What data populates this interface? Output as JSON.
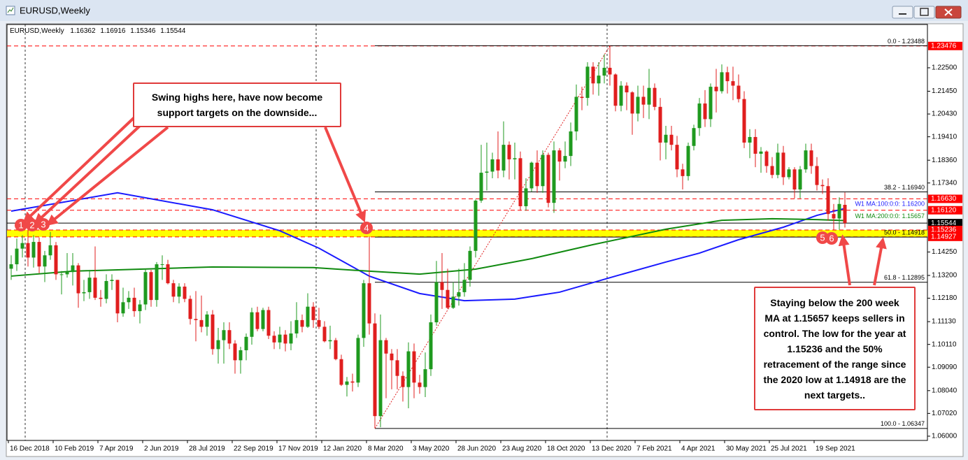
{
  "chart_data": {
    "type": "candlestick",
    "title": "EURUSD,Weekly",
    "up_color": "#1f9a1f",
    "down_color": "#e01e1e",
    "ylim": [
      1.0581,
      1.2444
    ],
    "yticks": [
      {
        "value": 1.225,
        "label": "1.22500"
      },
      {
        "value": 1.2145,
        "label": "1.21450"
      },
      {
        "value": 1.2043,
        "label": "1.20430"
      },
      {
        "value": 1.1941,
        "label": "1.19410"
      },
      {
        "value": 1.1836,
        "label": "1.18360"
      },
      {
        "value": 1.1734,
        "label": "1.17340"
      },
      {
        "value": 1.1425,
        "label": "1.14250"
      },
      {
        "value": 1.132,
        "label": "1.13200"
      },
      {
        "value": 1.1218,
        "label": "1.12180"
      },
      {
        "value": 1.1113,
        "label": "1.11130"
      },
      {
        "value": 1.1011,
        "label": "1.10110"
      },
      {
        "value": 1.0909,
        "label": "1.09090"
      },
      {
        "value": 1.0804,
        "label": "1.08040"
      },
      {
        "value": 1.0702,
        "label": "1.07020"
      },
      {
        "value": 1.06,
        "label": "1.06000"
      }
    ],
    "xticks": [
      {
        "value": 0,
        "label": "16 Dec 2018"
      },
      {
        "value": 8,
        "label": "10 Feb 2019"
      },
      {
        "value": 16,
        "label": "7 Apr 2019"
      },
      {
        "value": 24,
        "label": "2 Jun 2019"
      },
      {
        "value": 32,
        "label": "28 Jul 2019"
      },
      {
        "value": 40,
        "label": "22 Sep 2019"
      },
      {
        "value": 48,
        "label": "17 Nov 2019"
      },
      {
        "value": 56,
        "label": "12 Jan 2020"
      },
      {
        "value": 64,
        "label": "8 Mar 2020"
      },
      {
        "value": 72,
        "label": "3 May 2020"
      },
      {
        "value": 80,
        "label": "28 Jun 2020"
      },
      {
        "value": 88,
        "label": "23 Aug 2020"
      },
      {
        "value": 96,
        "label": "18 Oct 2020"
      },
      {
        "value": 104,
        "label": "13 Dec 2020"
      },
      {
        "value": 112,
        "label": "7 Feb 2021"
      },
      {
        "value": 120,
        "label": "4 Apr 2021"
      },
      {
        "value": 128,
        "label": "30 May 2021"
      },
      {
        "value": 136,
        "label": "25 Jul 2021"
      },
      {
        "value": 144,
        "label": "19 Sep 2021"
      }
    ],
    "ohlc": [
      [
        1.135,
        1.141,
        1.13,
        1.137
      ],
      [
        1.137,
        1.1485,
        1.134,
        1.144
      ],
      [
        1.144,
        1.15,
        1.14,
        1.1465
      ],
      [
        1.1465,
        1.157,
        1.136,
        1.14
      ],
      [
        1.14,
        1.15,
        1.1355,
        1.147
      ],
      [
        1.147,
        1.149,
        1.133,
        1.136
      ],
      [
        1.136,
        1.143,
        1.129,
        1.141
      ],
      [
        1.141,
        1.1515,
        1.139,
        1.1455
      ],
      [
        1.1455,
        1.147,
        1.13,
        1.1325
      ],
      [
        1.1325,
        1.134,
        1.1235,
        1.1325
      ],
      [
        1.1325,
        1.142,
        1.131,
        1.1335
      ],
      [
        1.1335,
        1.142,
        1.1275,
        1.1365
      ],
      [
        1.1365,
        1.1375,
        1.1175,
        1.124
      ],
      [
        1.124,
        1.13,
        1.1205,
        1.1245
      ],
      [
        1.1245,
        1.1345,
        1.1215,
        1.131
      ],
      [
        1.131,
        1.145,
        1.121,
        1.122
      ],
      [
        1.122,
        1.1255,
        1.118,
        1.1215
      ],
      [
        1.1215,
        1.1325,
        1.1195,
        1.1295
      ],
      [
        1.1295,
        1.1325,
        1.1255,
        1.13
      ],
      [
        1.13,
        1.13,
        1.111,
        1.115
      ],
      [
        1.115,
        1.1265,
        1.1135,
        1.12
      ],
      [
        1.12,
        1.125,
        1.117,
        1.122
      ],
      [
        1.122,
        1.1265,
        1.1135,
        1.116
      ],
      [
        1.116,
        1.121,
        1.1105,
        1.119
      ],
      [
        1.119,
        1.135,
        1.1165,
        1.1335
      ],
      [
        1.1335,
        1.1345,
        1.118,
        1.121
      ],
      [
        1.121,
        1.138,
        1.118,
        1.137
      ],
      [
        1.137,
        1.141,
        1.13,
        1.137
      ],
      [
        1.137,
        1.139,
        1.128,
        1.1285
      ],
      [
        1.1285,
        1.13,
        1.12,
        1.1225
      ],
      [
        1.1225,
        1.1285,
        1.1195,
        1.127
      ],
      [
        1.127,
        1.1285,
        1.12,
        1.1215
      ],
      [
        1.1215,
        1.123,
        1.11,
        1.1125
      ],
      [
        1.1125,
        1.125,
        1.1025,
        1.112
      ],
      [
        1.112,
        1.123,
        1.1065,
        1.109
      ],
      [
        1.109,
        1.116,
        1.105,
        1.1145
      ],
      [
        1.1145,
        1.1165,
        1.0965,
        1.099
      ],
      [
        1.099,
        1.1085,
        1.0925,
        1.103
      ],
      [
        1.103,
        1.111,
        1.0925,
        1.1075
      ],
      [
        1.1075,
        1.111,
        1.099,
        1.1015
      ],
      [
        1.1015,
        1.103,
        1.088,
        1.094
      ],
      [
        1.094,
        1.1,
        1.088,
        1.0985
      ],
      [
        1.0985,
        1.106,
        1.094,
        1.1045
      ],
      [
        1.1045,
        1.1175,
        1.101,
        1.1155
      ],
      [
        1.1155,
        1.118,
        1.107,
        1.108
      ],
      [
        1.108,
        1.1175,
        1.107,
        1.1165
      ],
      [
        1.1165,
        1.118,
        1.1035,
        1.105
      ],
      [
        1.105,
        1.107,
        1.099,
        1.102
      ],
      [
        1.102,
        1.109,
        1.099,
        1.1055
      ],
      [
        1.1055,
        1.1075,
        1.098,
        1.1015
      ],
      [
        1.1015,
        1.1115,
        1.0985,
        1.106
      ],
      [
        1.106,
        1.12,
        1.104,
        1.112
      ],
      [
        1.112,
        1.1145,
        1.1065,
        1.109
      ],
      [
        1.109,
        1.124,
        1.1085,
        1.118
      ],
      [
        1.118,
        1.12,
        1.1085,
        1.112
      ],
      [
        1.112,
        1.1175,
        1.108,
        1.109
      ],
      [
        1.109,
        1.1115,
        1.102,
        1.1025
      ],
      [
        1.1025,
        1.1095,
        1.099,
        1.103
      ],
      [
        1.103,
        1.104,
        1.094,
        1.0945
      ],
      [
        1.0945,
        1.0965,
        1.0825,
        1.083
      ],
      [
        1.083,
        1.0865,
        1.0778,
        1.0845
      ],
      [
        1.0845,
        1.088,
        1.08,
        1.084
      ],
      [
        1.084,
        1.1055,
        1.082,
        1.104
      ],
      [
        1.104,
        1.13,
        1.1,
        1.1285
      ],
      [
        1.1285,
        1.1495,
        1.1055,
        1.1105
      ],
      [
        1.1105,
        1.115,
        1.0636,
        1.069
      ],
      [
        1.069,
        1.1145,
        1.064,
        1.103
      ],
      [
        1.103,
        1.104,
        1.077,
        1.097
      ],
      [
        1.097,
        1.099,
        1.081,
        1.094
      ],
      [
        1.094,
        1.099,
        1.081,
        1.087
      ],
      [
        1.087,
        1.089,
        1.0755,
        1.082
      ],
      [
        1.082,
        1.102,
        1.0725,
        1.098
      ],
      [
        1.098,
        1.1015,
        1.077,
        1.084
      ],
      [
        1.084,
        1.0875,
        1.079,
        1.082
      ],
      [
        1.082,
        1.0975,
        1.0775,
        1.09
      ],
      [
        1.09,
        1.1145,
        1.087,
        1.111
      ],
      [
        1.111,
        1.1385,
        1.1095,
        1.129
      ],
      [
        1.129,
        1.142,
        1.117,
        1.1255
      ],
      [
        1.1255,
        1.135,
        1.117,
        1.1175
      ],
      [
        1.1175,
        1.129,
        1.117,
        1.1225
      ],
      [
        1.1225,
        1.135,
        1.1185,
        1.1245
      ],
      [
        1.1245,
        1.1375,
        1.1225,
        1.13
      ],
      [
        1.13,
        1.145,
        1.127,
        1.143
      ],
      [
        1.143,
        1.166,
        1.14,
        1.1655
      ],
      [
        1.1655,
        1.1905,
        1.1645,
        1.178
      ],
      [
        1.178,
        1.1915,
        1.17,
        1.1785
      ],
      [
        1.1785,
        1.187,
        1.1755,
        1.184
      ],
      [
        1.184,
        1.1965,
        1.1755,
        1.179
      ],
      [
        1.179,
        1.201,
        1.176,
        1.1905
      ],
      [
        1.1905,
        1.192,
        1.175,
        1.184
      ],
      [
        1.184,
        1.1915,
        1.175,
        1.1845
      ],
      [
        1.1845,
        1.1875,
        1.161,
        1.163
      ],
      [
        1.163,
        1.1755,
        1.161,
        1.171
      ],
      [
        1.171,
        1.183,
        1.1695,
        1.1825
      ],
      [
        1.1825,
        1.188,
        1.169,
        1.172
      ],
      [
        1.172,
        1.188,
        1.169,
        1.186
      ],
      [
        1.186,
        1.187,
        1.1625,
        1.1645
      ],
      [
        1.1645,
        1.192,
        1.16,
        1.188
      ],
      [
        1.188,
        1.189,
        1.1745,
        1.183
      ],
      [
        1.183,
        1.192,
        1.18,
        1.1855
      ],
      [
        1.1855,
        1.2005,
        1.181,
        1.1965
      ],
      [
        1.1965,
        1.2175,
        1.1925,
        1.212
      ],
      [
        1.212,
        1.2165,
        1.206,
        1.2115
      ],
      [
        1.2115,
        1.2275,
        1.208,
        1.2255
      ],
      [
        1.2255,
        1.2275,
        1.213,
        1.218
      ],
      [
        1.218,
        1.2275,
        1.2125,
        1.2215
      ],
      [
        1.2215,
        1.231,
        1.218,
        1.225
      ],
      [
        1.225,
        1.2349,
        1.217,
        1.222
      ],
      [
        1.222,
        1.2225,
        1.2055,
        1.208
      ],
      [
        1.208,
        1.219,
        1.2055,
        1.217
      ],
      [
        1.217,
        1.2185,
        1.206,
        1.214
      ],
      [
        1.214,
        1.2145,
        1.195,
        1.2045
      ],
      [
        1.2045,
        1.217,
        1.201,
        1.212
      ],
      [
        1.212,
        1.217,
        1.2025,
        1.2085
      ],
      [
        1.2085,
        1.2245,
        1.202,
        1.216
      ],
      [
        1.216,
        1.218,
        1.206,
        1.2075
      ],
      [
        1.2075,
        1.2115,
        1.1835,
        1.1915
      ],
      [
        1.1915,
        1.199,
        1.184,
        1.195
      ],
      [
        1.195,
        1.199,
        1.188,
        1.1905
      ],
      [
        1.1905,
        1.1945,
        1.176,
        1.1795
      ],
      [
        1.1795,
        1.182,
        1.1705,
        1.1765
      ],
      [
        1.1765,
        1.1915,
        1.1745,
        1.19
      ],
      [
        1.19,
        1.1995,
        1.188,
        1.198
      ],
      [
        1.198,
        1.2115,
        1.1945,
        1.209
      ],
      [
        1.209,
        1.215,
        1.1985,
        1.202
      ],
      [
        1.202,
        1.218,
        1.1985,
        1.2165
      ],
      [
        1.2165,
        1.2245,
        1.205,
        1.2145
      ],
      [
        1.2145,
        1.2265,
        1.2135,
        1.223
      ],
      [
        1.223,
        1.2255,
        1.2135,
        1.219
      ],
      [
        1.219,
        1.2255,
        1.2105,
        1.217
      ],
      [
        1.217,
        1.222,
        1.2095,
        1.211
      ],
      [
        1.211,
        1.2145,
        1.189,
        1.1915
      ],
      [
        1.1915,
        1.1975,
        1.1845,
        1.194
      ],
      [
        1.194,
        1.1975,
        1.1805,
        1.1865
      ],
      [
        1.1865,
        1.1895,
        1.178,
        1.1875
      ],
      [
        1.1875,
        1.188,
        1.178,
        1.181
      ],
      [
        1.181,
        1.185,
        1.1755,
        1.177
      ],
      [
        1.177,
        1.191,
        1.1755,
        1.187
      ],
      [
        1.187,
        1.19,
        1.1725,
        1.176
      ],
      [
        1.176,
        1.1805,
        1.175,
        1.1795
      ],
      [
        1.1795,
        1.1805,
        1.1665,
        1.1705
      ],
      [
        1.1705,
        1.181,
        1.1665,
        1.1795
      ],
      [
        1.1795,
        1.191,
        1.178,
        1.188
      ],
      [
        1.188,
        1.191,
        1.1775,
        1.181
      ],
      [
        1.181,
        1.185,
        1.17,
        1.1725
      ],
      [
        1.1725,
        1.175,
        1.1685,
        1.172
      ],
      [
        1.172,
        1.1755,
        1.1565,
        1.1595
      ],
      [
        1.1595,
        1.164,
        1.1525,
        1.1575
      ],
      [
        1.1575,
        1.167,
        1.1525,
        1.164
      ],
      [
        1.16362,
        1.16916,
        1.15346,
        1.15544
      ]
    ],
    "series": [
      {
        "name": "W1 MA:100:0:0: 1.16200",
        "color": "#1a1aff",
        "x": [
          0,
          19,
          36,
          48,
          55,
          64,
          73,
          81,
          90,
          98,
          108,
          117,
          123,
          130,
          138,
          144,
          149
        ],
        "values": [
          1.1608,
          1.169,
          1.1614,
          1.152,
          1.1442,
          1.1317,
          1.1239,
          1.1207,
          1.1214,
          1.1245,
          1.1317,
          1.138,
          1.142,
          1.148,
          1.1536,
          1.1589,
          1.162
        ]
      },
      {
        "name": "W1 MA:200:0:0: 1.15657",
        "color": "#108a10",
        "x": [
          0,
          11,
          36,
          54,
          64,
          73,
          83,
          93,
          104,
          117,
          127,
          136,
          144,
          149
        ],
        "values": [
          1.1317,
          1.1339,
          1.1358,
          1.1355,
          1.1339,
          1.1326,
          1.1348,
          1.1395,
          1.1458,
          1.1527,
          1.1567,
          1.1574,
          1.157,
          1.15657
        ]
      }
    ],
    "fib_levels": [
      {
        "value": 1.23488,
        "label": "0.0 - 1.23488"
      },
      {
        "value": 1.1694,
        "label": "38.2 - 1.16940"
      },
      {
        "value": 1.14918,
        "label": "50.0 - 1.14918"
      },
      {
        "value": 1.12895,
        "label": "61.8 - 1.12895"
      },
      {
        "value": 1.06347,
        "label": "100.0 - 1.06347"
      }
    ],
    "fib_color": "#000000",
    "fib_trend_color": "#e02020",
    "price_labels": [
      {
        "value": 1.23476,
        "color": "#ff0000"
      },
      {
        "value": 1.1663,
        "label": "1.16630",
        "color": "#ff0000"
      },
      {
        "value": 1.1612,
        "label": "1.16120",
        "color": "#ff0000"
      },
      {
        "value": 1.15544,
        "color": "#000000"
      },
      {
        "value": 1.15236,
        "color": "#ff0000"
      },
      {
        "value": 1.14927,
        "color": "#ff0000"
      }
    ],
    "zone_color": "#ffff00",
    "markers": [
      "1",
      "2",
      "3",
      "4",
      "5",
      "6"
    ],
    "marker_color": "#f04848"
  },
  "annotations": [
    "Swing highs here, have now become support targets on the downside...",
    "Staying below the 200 week MA at 1.15657 keeps sellers in control.  The low for the year at 1.15236 and the 50% retracement of the range since the 2020 low at 1.14918 are the next targets.."
  ]
}
